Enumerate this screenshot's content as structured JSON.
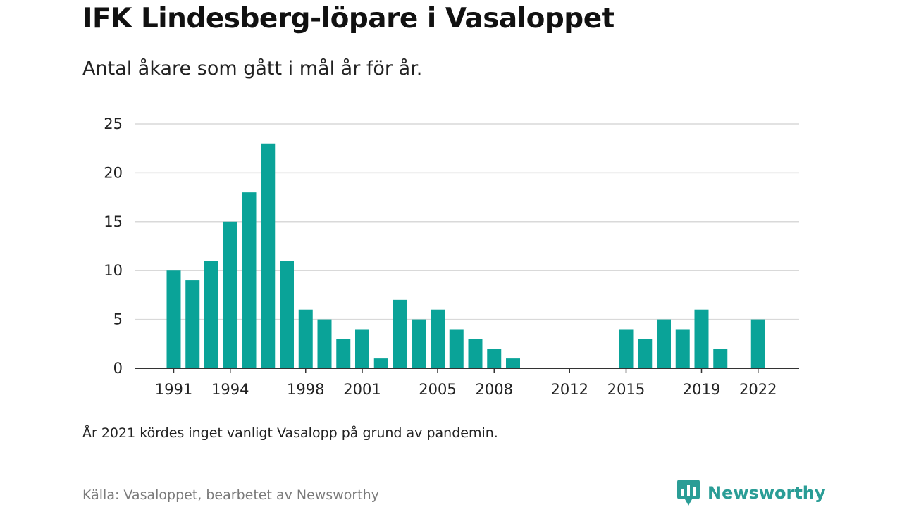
{
  "title": "IFK Lindesberg-löpare i Vasaloppet",
  "subtitle": "Antal åkare som gått i mål år för år.",
  "note": "År 2021 kördes inget vanligt Vasalopp på grund av pandemin.",
  "source": "Källa: Vasaloppet, bearbetet av Newsworthy",
  "brand": {
    "name": "Newsworthy",
    "icon": "newsworthy-logo-icon"
  },
  "colors": {
    "bar": "#0aa398",
    "brand": "#2a9d96",
    "grid": "#d9d9d9",
    "axis": "#333333"
  },
  "chart_data": {
    "type": "bar",
    "x": [
      1991,
      1992,
      1993,
      1994,
      1995,
      1996,
      1997,
      1998,
      1999,
      2000,
      2001,
      2002,
      2003,
      2004,
      2005,
      2006,
      2007,
      2008,
      2009,
      2010,
      2011,
      2012,
      2013,
      2014,
      2015,
      2016,
      2017,
      2018,
      2019,
      2020,
      2021,
      2022
    ],
    "values": [
      10,
      9,
      11,
      15,
      18,
      23,
      11,
      6,
      5,
      3,
      4,
      1,
      7,
      5,
      6,
      4,
      3,
      2,
      1,
      0,
      0,
      0,
      0,
      0,
      4,
      3,
      5,
      4,
      6,
      2,
      null,
      5
    ],
    "x_tick_labels": [
      "1991",
      "1994",
      "1998",
      "2001",
      "2005",
      "2008",
      "2012",
      "2015",
      "2019",
      "2022"
    ],
    "y_ticks": [
      0,
      5,
      10,
      15,
      20,
      25
    ],
    "ylim": [
      0,
      25
    ],
    "grid": true,
    "legend": "none"
  }
}
